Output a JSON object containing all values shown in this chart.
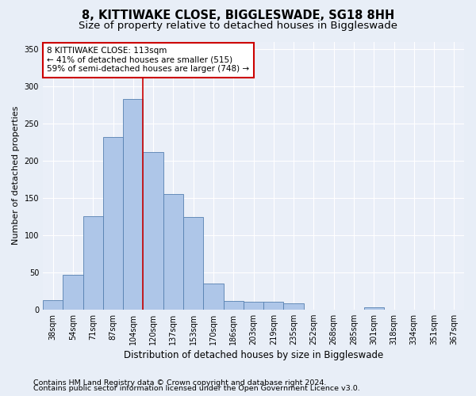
{
  "title": "8, KITTIWAKE CLOSE, BIGGLESWADE, SG18 8HH",
  "subtitle": "Size of property relative to detached houses in Biggleswade",
  "xlabel": "Distribution of detached houses by size in Biggleswade",
  "ylabel": "Number of detached properties",
  "categories": [
    "38sqm",
    "54sqm",
    "71sqm",
    "87sqm",
    "104sqm",
    "120sqm",
    "137sqm",
    "153sqm",
    "170sqm",
    "186sqm",
    "203sqm",
    "219sqm",
    "235sqm",
    "252sqm",
    "268sqm",
    "285sqm",
    "301sqm",
    "318sqm",
    "334sqm",
    "351sqm",
    "367sqm"
  ],
  "values": [
    12,
    46,
    125,
    232,
    283,
    211,
    155,
    124,
    35,
    11,
    10,
    10,
    8,
    0,
    0,
    0,
    3,
    0,
    0,
    0,
    0
  ],
  "bar_color": "#aec6e8",
  "bar_edge_color": "#5580b0",
  "vline_color": "#cc0000",
  "vline_bar_index": 4,
  "annotation_line1": "8 KITTIWAKE CLOSE: 113sqm",
  "annotation_line2": "← 41% of detached houses are smaller (515)",
  "annotation_line3": "59% of semi-detached houses are larger (748) →",
  "annotation_box_color": "#ffffff",
  "annotation_box_edge_color": "#cc0000",
  "ylim": [
    0,
    360
  ],
  "yticks": [
    0,
    50,
    100,
    150,
    200,
    250,
    300,
    350
  ],
  "footer1": "Contains HM Land Registry data © Crown copyright and database right 2024.",
  "footer2": "Contains public sector information licensed under the Open Government Licence v3.0.",
  "bg_color": "#e8eef7",
  "plot_bg_color": "#eaeff8",
  "title_fontsize": 10.5,
  "subtitle_fontsize": 9.5,
  "xlabel_fontsize": 8.5,
  "ylabel_fontsize": 8,
  "tick_fontsize": 7,
  "footer_fontsize": 6.8,
  "annotation_fontsize": 7.5
}
